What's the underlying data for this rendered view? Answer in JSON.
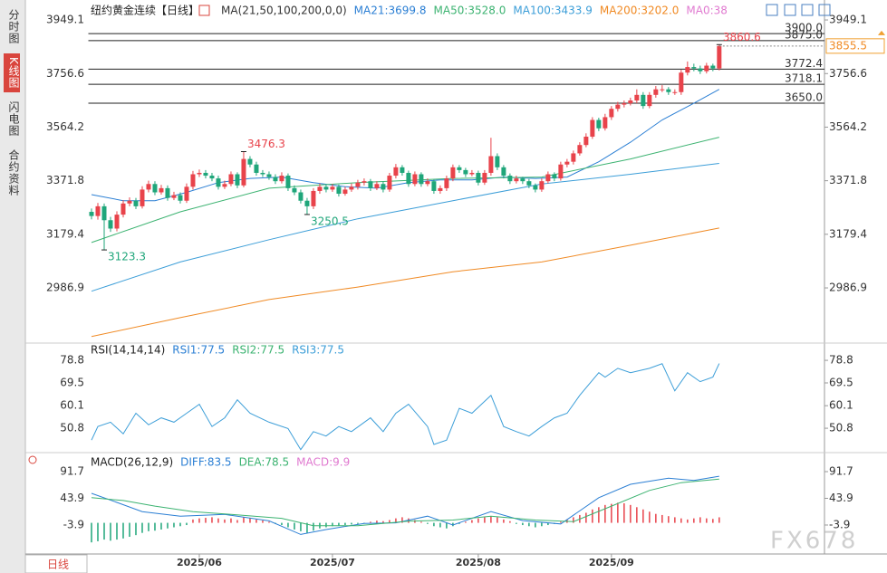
{
  "sidebar": {
    "tabs": [
      "分时图",
      "K线图",
      "闪电图",
      "合约资料"
    ],
    "active": 1
  },
  "bottom_tab": "日线",
  "watermark": "FX678",
  "chart_data": [
    {
      "type": "candlestick",
      "title": "纽约黄金连续【日线】",
      "indicator": "MA(21,50,100,200,0,0)",
      "up_color": "#e8434b",
      "down_color": "#1fa67a",
      "xlim": [
        -0.5,
        115.6
      ],
      "ylim": [
        2792,
        3972
      ],
      "yticks": [
        3949.1,
        3756.6,
        3564.2,
        3371.8,
        3179.4,
        2986.9
      ],
      "open": [
        3260,
        3245,
        3280,
        3230,
        3200,
        3250,
        3290,
        3300,
        3280,
        3340,
        3360,
        3330,
        3345,
        3310,
        3320,
        3300,
        3350,
        3395,
        3400,
        3390,
        3380,
        3350,
        3360,
        3395,
        3355,
        3450,
        3430,
        3400,
        3395,
        3385,
        3370,
        3390,
        3345,
        3330,
        3300,
        3280,
        3335,
        3350,
        3340,
        3350,
        3325,
        3340,
        3350,
        3365,
        3370,
        3345,
        3360,
        3340,
        3390,
        3420,
        3400,
        3360,
        3395,
        3360,
        3370,
        3335,
        3345,
        3380,
        3420,
        3410,
        3395,
        3400,
        3365,
        3400,
        3460,
        3420,
        3390,
        3370,
        3380,
        3370,
        3355,
        3340,
        3370,
        3395,
        3380,
        3430,
        3440,
        3470,
        3500,
        3530,
        3590,
        3560,
        3600,
        3630,
        3645,
        3650,
        3660,
        3680,
        3640,
        3680,
        3700,
        3700,
        3690,
        3690,
        3760,
        3780,
        3775,
        3765,
        3785,
        3775
      ],
      "high": [
        3272,
        3292,
        3290,
        3242,
        3262,
        3302,
        3312,
        3310,
        3352,
        3372,
        3370,
        3357,
        3355,
        3332,
        3330,
        3362,
        3407,
        3412,
        3410,
        3400,
        3390,
        3372,
        3405,
        3402,
        3476.3,
        3460,
        3440,
        3410,
        3405,
        3395,
        3402,
        3398,
        3355,
        3340,
        3310,
        3345,
        3362,
        3358,
        3360,
        3358,
        3350,
        3362,
        3375,
        3380,
        3378,
        3370,
        3368,
        3400,
        3432,
        3428,
        3408,
        3405,
        3402,
        3380,
        3375,
        3355,
        3390,
        3430,
        3428,
        3418,
        3410,
        3408,
        3410,
        3526,
        3470,
        3428,
        3398,
        3390,
        3386,
        3378,
        3362,
        3380,
        3405,
        3402,
        3440,
        3450,
        3480,
        3510,
        3542,
        3600,
        3598,
        3612,
        3640,
        3655,
        3660,
        3670,
        3700,
        3690,
        3690,
        3712,
        3715,
        3708,
        3700,
        3770,
        3800,
        3792,
        3785,
        3795,
        3792,
        3860.6
      ],
      "low": [
        3233,
        3232,
        3123.3,
        3188,
        3190,
        3240,
        3280,
        3270,
        3272,
        3330,
        3320,
        3322,
        3300,
        3302,
        3290,
        3292,
        3340,
        3385,
        3380,
        3370,
        3340,
        3342,
        3352,
        3345,
        3348,
        3420,
        3390,
        3385,
        3375,
        3360,
        3362,
        3335,
        3320,
        3290,
        3250.5,
        3270,
        3325,
        3330,
        3332,
        3315,
        3318,
        3332,
        3340,
        3355,
        3335,
        3338,
        3330,
        3332,
        3380,
        3390,
        3350,
        3352,
        3350,
        3352,
        3325,
        3325,
        3335,
        3370,
        3400,
        3385,
        3388,
        3355,
        3357,
        3390,
        3410,
        3380,
        3360,
        3362,
        3360,
        3345,
        3330,
        3332,
        3362,
        3370,
        3372,
        3420,
        3430,
        3462,
        3492,
        3522,
        3550,
        3552,
        3590,
        3620,
        3635,
        3642,
        3650,
        3630,
        3632,
        3670,
        3690,
        3680,
        3680,
        3680,
        3750,
        3765,
        3755,
        3757,
        3765,
        3768
      ],
      "close": [
        3245,
        3280,
        3230,
        3200,
        3250,
        3290,
        3300,
        3280,
        3340,
        3360,
        3330,
        3345,
        3310,
        3320,
        3300,
        3350,
        3395,
        3400,
        3390,
        3380,
        3350,
        3360,
        3395,
        3355,
        3450,
        3430,
        3400,
        3395,
        3385,
        3370,
        3390,
        3345,
        3330,
        3300,
        3280,
        3335,
        3350,
        3340,
        3350,
        3325,
        3340,
        3350,
        3365,
        3370,
        3345,
        3360,
        3340,
        3390,
        3420,
        3400,
        3360,
        3395,
        3360,
        3370,
        3335,
        3345,
        3380,
        3420,
        3410,
        3395,
        3400,
        3365,
        3400,
        3460,
        3420,
        3390,
        3370,
        3380,
        3370,
        3355,
        3340,
        3370,
        3395,
        3380,
        3430,
        3440,
        3470,
        3500,
        3530,
        3590,
        3560,
        3600,
        3630,
        3645,
        3650,
        3660,
        3680,
        3640,
        3680,
        3700,
        3700,
        3690,
        3690,
        3760,
        3780,
        3775,
        3765,
        3785,
        3775,
        3855.5
      ],
      "series": [
        {
          "name": "MA21:3699.8",
          "color": "#2b7fd4",
          "x": [
            0,
            5,
            10,
            15,
            20,
            25,
            30,
            35,
            40,
            45,
            50,
            55,
            60,
            65,
            70,
            75,
            80,
            85,
            90,
            95,
            99
          ],
          "values": [
            3322,
            3300,
            3300,
            3330,
            3365,
            3380,
            3385,
            3365,
            3350,
            3345,
            3365,
            3375,
            3375,
            3385,
            3380,
            3385,
            3440,
            3510,
            3590,
            3650,
            3699.8
          ]
        },
        {
          "name": "MA50:3528.0",
          "color": "#3cb371",
          "x": [
            0,
            14,
            28,
            42,
            57,
            71,
            85,
            99
          ],
          "values": [
            3150,
            3260,
            3345,
            3365,
            3380,
            3385,
            3450,
            3528
          ]
        },
        {
          "name": "MA100:3433.9",
          "color": "#3c9ed8",
          "x": [
            0,
            14,
            28,
            42,
            57,
            71,
            85,
            99
          ],
          "values": [
            2975,
            3080,
            3160,
            3235,
            3300,
            3360,
            3395,
            3433.9
          ]
        },
        {
          "name": "MA200:3202.0",
          "color": "#f08a24",
          "x": [
            0,
            14,
            28,
            42,
            57,
            71,
            85,
            99
          ],
          "values": [
            2812,
            2880,
            2945,
            2990,
            3045,
            3080,
            3140,
            3202
          ]
        }
      ],
      "labels": [
        {
          "text": "MA0:38",
          "color": "#e07ad0"
        }
      ],
      "hlines": [
        {
          "value": 3900,
          "label": "3900.0"
        },
        {
          "value": 3875,
          "label": "3875.0"
        },
        3772.4,
        3718.1,
        {
          "value": 3650,
          "label": "3650.0"
        }
      ],
      "last_price": 3855.5,
      "annotations": [
        {
          "x": 24,
          "value": 3476.3,
          "color": "#e8434b"
        },
        {
          "x": 34,
          "value": 3250.5,
          "color": "#1fa67a"
        },
        {
          "x": 2,
          "value": 3123.3,
          "color": "#1fa67a"
        },
        {
          "x": 99,
          "value": 3860.6,
          "color": "#e8434b"
        }
      ]
    },
    {
      "type": "line",
      "title": "RSI(14,14,14)",
      "xlim": [
        -0.5,
        115.6
      ],
      "ylim": [
        41.5,
        84.8
      ],
      "yticks": [
        78.8,
        69.5,
        60.1,
        50.8
      ],
      "labels": [
        {
          "text": "RSI1:77.5",
          "color": "#2b7fd4"
        },
        {
          "text": "RSI2:77.5",
          "color": "#3cb371"
        },
        {
          "text": "RSI3:77.5",
          "color": "#3c9ed8"
        }
      ],
      "color": "#3c9ed8",
      "x": [
        0,
        1,
        3,
        5,
        7,
        9,
        11,
        13,
        15,
        17,
        19,
        21,
        23,
        25,
        28,
        31,
        33,
        35,
        37,
        39,
        41,
        44,
        46,
        48,
        50,
        53,
        54,
        56,
        58,
        60,
        63,
        65,
        67,
        69,
        71,
        73,
        75,
        77,
        80,
        81,
        83,
        85,
        88,
        90,
        92,
        94,
        96,
        98,
        99
      ],
      "values": [
        45.9,
        51.5,
        53.3,
        48.5,
        57.0,
        52.2,
        55.1,
        53.3,
        57.0,
        60.7,
        51.5,
        55.1,
        62.5,
        57.0,
        53.3,
        50.7,
        42.0,
        49.4,
        47.6,
        51.5,
        49.4,
        55.1,
        49.4,
        57.0,
        60.7,
        51.5,
        44.1,
        45.9,
        59.0,
        57.0,
        64.4,
        51.5,
        49.4,
        47.6,
        51.5,
        55.1,
        57.0,
        64.4,
        73.7,
        71.9,
        75.5,
        73.7,
        75.5,
        77.4,
        66.2,
        73.7,
        70.0,
        71.9,
        77.5
      ]
    },
    {
      "type": "macd",
      "title": "MACD(26,12,9)",
      "xlim": [
        -0.5,
        115.6
      ],
      "ylim": [
        -55.8,
        120.9
      ],
      "yticks": [
        91.7,
        43.9,
        -3.9
      ],
      "xticks": [
        {
          "value": 17,
          "label": "2025/06"
        },
        {
          "value": 38,
          "label": "2025/07"
        },
        {
          "value": 61,
          "label": "2025/08"
        },
        {
          "value": 82,
          "label": "2025/09"
        }
      ],
      "series": [
        {
          "name": "DIFF:83.5",
          "color": "#2b7fd4",
          "x": [
            0,
            4,
            8,
            14,
            21,
            28,
            33,
            37,
            43,
            48,
            53,
            57,
            63,
            68,
            74,
            80,
            85,
            91,
            95,
            99
          ],
          "values": [
            52.8,
            36.6,
            20,
            12,
            15,
            3.5,
            -20.8,
            -12,
            -1,
            0,
            12,
            -3.9,
            20,
            4,
            -2,
            45,
            69,
            80,
            76,
            83.5
          ]
        },
        {
          "name": "DEA:78.5",
          "color": "#3cb371",
          "x": [
            0,
            5,
            10,
            16,
            22,
            30,
            35,
            42,
            50,
            57,
            63,
            70,
            76,
            82,
            88,
            93,
            99
          ],
          "values": [
            45,
            40,
            30,
            20,
            15,
            8,
            -5,
            -5,
            3,
            5,
            12,
            5,
            2,
            30,
            58,
            72,
            78.5
          ]
        }
      ],
      "histogram": {
        "name": "MACD:9.9",
        "color": "#e07ad0",
        "up_color": "#e8434b",
        "down_color": "#1fa67a",
        "values": [
          -35,
          -33,
          -30,
          -32,
          -30,
          -28,
          -25,
          -22,
          -18,
          -15,
          -14,
          -12,
          -10,
          -8,
          -6,
          -4,
          6,
          8,
          9,
          10,
          8,
          6,
          8,
          5,
          10,
          9,
          6,
          4,
          2,
          -2,
          -4,
          -8,
          -12,
          -15,
          -18,
          -14,
          -10,
          -8,
          -6,
          -5,
          -4,
          -3,
          -2,
          -1,
          2,
          4,
          3,
          5,
          8,
          10,
          8,
          5,
          2,
          -2,
          -6,
          -8,
          -10,
          -6,
          -2,
          2,
          5,
          8,
          10,
          12,
          10,
          6,
          3,
          -2,
          -4,
          -6,
          -8,
          -6,
          -4,
          -2,
          2,
          6,
          10,
          14,
          18,
          24,
          28,
          32,
          34,
          36,
          35,
          32,
          28,
          24,
          20,
          16,
          14,
          12,
          10,
          8,
          6,
          8,
          10,
          8,
          7,
          9.9
        ]
      }
    }
  ]
}
